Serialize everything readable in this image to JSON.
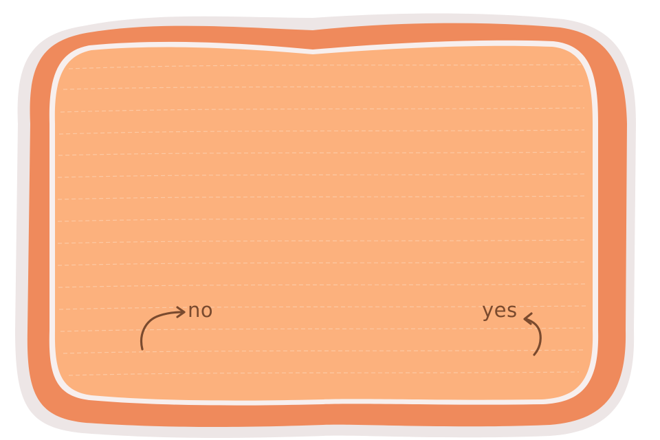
{
  "card": {
    "outline_color": "#ede6e6",
    "border_color": "#ef8a5c",
    "highlight_color": "#f7efee",
    "fill_color": "#fcb17d",
    "ruled_line_color": "#fdd2b1"
  },
  "choices": {
    "no": {
      "label": "no",
      "icon": "curved-arrow-right-icon"
    },
    "yes": {
      "label": "yes",
      "icon": "curved-arrow-up-left-icon"
    }
  },
  "text_color": "#7a4a2e"
}
